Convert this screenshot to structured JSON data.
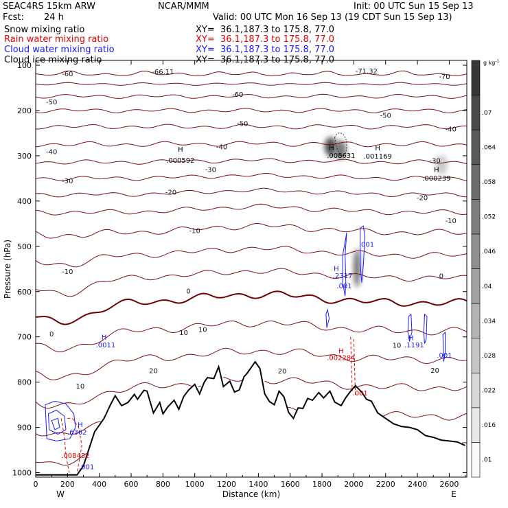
{
  "header": {
    "model": "SEAC4RS 15km ARW",
    "center": "NCAR/MMM",
    "init": "Init: 00 UTC Sun 15 Sep 13",
    "fcst_label": "Fcst:",
    "fcst_value": "24 h",
    "valid": "Valid: 00 UTC Mon 16 Sep 13 (19 CDT Sun 15 Sep 13)"
  },
  "fields": [
    {
      "name": "Snow mixing ratio",
      "xy": "XY=  36.1,187.3 to 175.8, 77.0",
      "color": "#000000"
    },
    {
      "name": "Rain water mixing ratio",
      "xy": "XY=  36.1,187.3 to 175.8, 77.0",
      "color": "#e00000"
    },
    {
      "name": "Cloud water mixing ratio",
      "xy": "XY=  36.1,187.3 to 175.8, 77.0",
      "color": "#1a1aff"
    },
    {
      "name": "Cloud ice mixing ratio",
      "xy": "XY=  36.1,187.3 to 175.8, 77.0",
      "color": "#000000"
    }
  ],
  "chart_data": {
    "type": "contour",
    "xlabel": "Distance (km)",
    "ylabel": "Pressure (hPa)",
    "xlim": [
      0,
      2700
    ],
    "ylim": [
      1020,
      100
    ],
    "x_ticks": [
      0,
      200,
      400,
      600,
      800,
      1000,
      1200,
      1400,
      1600,
      1800,
      2000,
      2200,
      2400,
      2600
    ],
    "y_ticks": [
      100,
      200,
      300,
      400,
      500,
      600,
      700,
      800,
      900,
      1000
    ],
    "x_end_labels": {
      "left": "W",
      "right": "E"
    },
    "temperature_contours": {
      "color": "#7b1010",
      "zero_color": "#6e0000",
      "levels": [
        -70,
        -65,
        -60,
        -55,
        -50,
        -45,
        -40,
        -35,
        -30,
        -25,
        -20,
        -15,
        -10,
        -5,
        0,
        5,
        10,
        15,
        20,
        25,
        30
      ],
      "labels": [
        {
          "text": "-60",
          "x": 200,
          "y": 118
        },
        {
          "text": "-66.11",
          "x": 800,
          "y": 114
        },
        {
          "text": "-71.32",
          "x": 2080,
          "y": 112
        },
        {
          "text": "-70",
          "x": 2570,
          "y": 124
        },
        {
          "text": "-60",
          "x": 1270,
          "y": 164
        },
        {
          "text": "-50",
          "x": 100,
          "y": 180
        },
        {
          "text": "-50",
          "x": 1300,
          "y": 228
        },
        {
          "text": "-50",
          "x": 2200,
          "y": 210
        },
        {
          "text": "-40",
          "x": 100,
          "y": 290
        },
        {
          "text": "-40",
          "x": 1170,
          "y": 280
        },
        {
          "text": "-40",
          "x": 2610,
          "y": 240
        },
        {
          "text": "-30",
          "x": 200,
          "y": 355
        },
        {
          "text": "-30",
          "x": 1100,
          "y": 330
        },
        {
          "text": "-30",
          "x": 2510,
          "y": 310
        },
        {
          "text": "-20",
          "x": 850,
          "y": 380
        },
        {
          "text": "-20",
          "x": 2430,
          "y": 392
        },
        {
          "text": "-10",
          "x": 1000,
          "y": 465
        },
        {
          "text": "-10",
          "x": 2610,
          "y": 443
        },
        {
          "text": "-10",
          "x": 200,
          "y": 555
        },
        {
          "text": "0",
          "x": 960,
          "y": 598
        },
        {
          "text": "0",
          "x": 2550,
          "y": 565
        },
        {
          "text": "0",
          "x": 100,
          "y": 693
        },
        {
          "text": "10",
          "x": 930,
          "y": 690
        },
        {
          "text": "10",
          "x": 1050,
          "y": 683
        },
        {
          "text": "10",
          "x": 2270,
          "y": 718
        },
        {
          "text": "10",
          "x": 280,
          "y": 808
        },
        {
          "text": "20",
          "x": 740,
          "y": 774
        },
        {
          "text": "20",
          "x": 1550,
          "y": 775
        },
        {
          "text": "20",
          "x": 2510,
          "y": 773
        }
      ]
    },
    "extrema_labels": [
      {
        "text": "H",
        "x": 910,
        "y": 285,
        "color": "#000000"
      },
      {
        "text": ".000592",
        "x": 910,
        "y": 309,
        "color": "#000000"
      },
      {
        "text": "H",
        "x": 1860,
        "y": 281,
        "color": "#000000"
      },
      {
        "text": ".008631",
        "x": 1920,
        "y": 299,
        "color": "#000000"
      },
      {
        "text": "H",
        "x": 2150,
        "y": 282,
        "color": "#000000"
      },
      {
        "text": ".001169",
        "x": 2150,
        "y": 300,
        "color": "#000000"
      },
      {
        "text": "H",
        "x": 2520,
        "y": 330,
        "color": "#000000"
      },
      {
        "text": ".000239",
        "x": 2520,
        "y": 349,
        "color": "#000000"
      },
      {
        "text": "H",
        "x": 1890,
        "y": 548,
        "color": "#1a1aff"
      },
      {
        "text": ".2317",
        "x": 1930,
        "y": 564,
        "color": "#1a1aff"
      },
      {
        "text": ".001",
        "x": 1940,
        "y": 587,
        "color": "#1a1aff"
      },
      {
        "text": ".001",
        "x": 2080,
        "y": 495,
        "color": "#1a1aff"
      },
      {
        "text": "H",
        "x": 430,
        "y": 700,
        "color": "#1a1aff"
      },
      {
        "text": ".0011",
        "x": 440,
        "y": 717,
        "color": "#1a1aff"
      },
      {
        "text": "H",
        "x": 2360,
        "y": 701,
        "color": "#1a1aff"
      },
      {
        "text": ".1191",
        "x": 2380,
        "y": 717,
        "color": "#1a1aff"
      },
      {
        "text": ".001",
        "x": 2570,
        "y": 740,
        "color": "#1a1aff"
      },
      {
        "text": "H",
        "x": 1920,
        "y": 730,
        "color": "#e00000"
      },
      {
        "text": ".002284",
        "x": 1920,
        "y": 745,
        "color": "#e00000"
      },
      {
        "text": ".001",
        "x": 2040,
        "y": 823,
        "color": "#e00000"
      },
      {
        "text": "H",
        "x": 280,
        "y": 893,
        "color": "#1a1aff"
      },
      {
        "text": ".6362",
        "x": 260,
        "y": 910,
        "color": "#1a1aff"
      },
      {
        "text": ".008432",
        "x": 250,
        "y": 961,
        "color": "#e00000"
      },
      {
        "text": ".001",
        "x": 320,
        "y": 986,
        "color": "#1a1aff"
      }
    ],
    "terrain": {
      "x": [
        0,
        60,
        150,
        240,
        260,
        300,
        370,
        430,
        470,
        500,
        540,
        580,
        620,
        640,
        680,
        700,
        740,
        780,
        800,
        830,
        870,
        900,
        930,
        960,
        1000,
        1030,
        1060,
        1080,
        1120,
        1150,
        1180,
        1220,
        1250,
        1280,
        1310,
        1330,
        1360,
        1380,
        1410,
        1440,
        1470,
        1500,
        1530,
        1560,
        1590,
        1620,
        1650,
        1680,
        1710,
        1740,
        1780,
        1810,
        1850,
        1880,
        1920,
        1950,
        1980,
        2010,
        2050,
        2080,
        2110,
        2150,
        2200,
        2250,
        2300,
        2350,
        2400,
        2450,
        2500,
        2550,
        2600,
        2650,
        2700
      ],
      "p": [
        1005,
        1005,
        1005,
        1005,
        1005,
        985,
        910,
        880,
        850,
        830,
        852,
        845,
        827,
        838,
        818,
        820,
        868,
        845,
        870,
        855,
        840,
        860,
        832,
        818,
        805,
        826,
        800,
        790,
        792,
        766,
        810,
        798,
        822,
        817,
        788,
        780,
        765,
        755,
        770,
        826,
        843,
        850,
        820,
        832,
        867,
        880,
        857,
        858,
        836,
        840,
        823,
        835,
        820,
        844,
        852,
        834,
        820,
        808,
        822,
        838,
        842,
        868,
        880,
        892,
        898,
        900,
        905,
        918,
        922,
        928,
        930,
        932,
        940
      ]
    },
    "cloud_ice_maxima": [
      {
        "x": 1855,
        "p": 280,
        "value": 0.068
      },
      {
        "x": 1915,
        "p": 287,
        "value": 0.05
      },
      {
        "x": 2020,
        "p": 548,
        "value": 0.055
      },
      {
        "x": 2550,
        "p": 320,
        "value": 0.015
      }
    ],
    "colorbar": {
      "title": "g kg",
      "title_sup": "-1",
      "levels": [
        0.01,
        0.016,
        0.022,
        0.028,
        0.034,
        0.04,
        0.046,
        0.052,
        0.058,
        0.064,
        0.07
      ],
      "labels": [
        ".01",
        ".016",
        ".022",
        ".028",
        ".034",
        ".04",
        ".046",
        ".052",
        ".058",
        ".064",
        ".07"
      ]
    }
  }
}
